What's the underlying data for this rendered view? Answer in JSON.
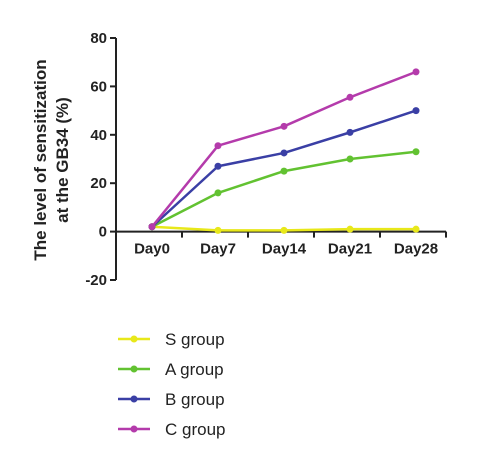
{
  "chart_data": {
    "type": "line",
    "title": "",
    "xlabel": "",
    "ylabel_lines": [
      "The level of sensitization",
      "at the GB34 (%)"
    ],
    "categories": [
      "Day0",
      "Day7",
      "Day14",
      "Day21",
      "Day28"
    ],
    "ylim": [
      -20,
      80
    ],
    "yticks": [
      -20,
      0,
      20,
      40,
      60,
      80
    ],
    "grid": false,
    "legend_position": "bottom",
    "series": [
      {
        "name": "S group",
        "color": "#e8e81a",
        "values": [
          2,
          0.5,
          0.5,
          1,
          1
        ]
      },
      {
        "name": "A group",
        "color": "#62c231",
        "values": [
          2,
          16,
          25,
          30,
          33
        ]
      },
      {
        "name": "B group",
        "color": "#3a3fa5",
        "values": [
          2,
          27,
          32.5,
          41,
          50
        ]
      },
      {
        "name": "C group",
        "color": "#b43bab",
        "values": [
          2,
          35.5,
          43.5,
          55.5,
          66
        ]
      }
    ]
  }
}
